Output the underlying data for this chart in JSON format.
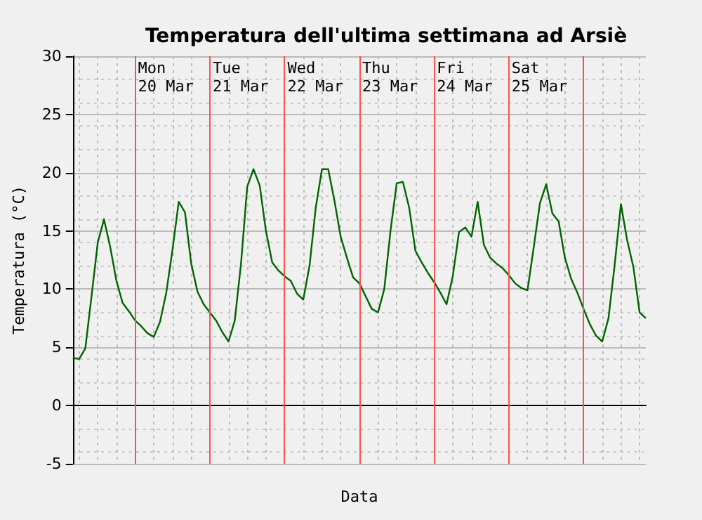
{
  "chart_data": {
    "type": "line",
    "title": "Temperatura dell'ultima settimana ad Arsiè",
    "xlabel": "Data",
    "ylabel": "Temperatura (°C)",
    "categories": [
      null,
      null,
      null,
      null,
      null,
      null,
      null,
      null,
      null,
      null,
      null,
      null,
      null,
      null,
      null,
      null,
      null,
      null,
      null,
      null,
      null,
      null,
      null,
      null,
      null,
      null,
      null,
      null,
      null,
      null,
      null,
      null,
      null,
      null,
      null,
      null,
      null,
      null,
      null,
      null,
      null,
      null,
      null,
      null,
      null,
      null,
      null,
      null,
      null,
      null,
      null,
      null,
      null,
      null,
      null,
      null,
      null,
      null,
      null,
      null,
      null,
      null,
      null,
      null,
      null,
      null,
      null,
      null,
      null,
      null,
      null,
      null,
      null,
      null,
      null,
      null,
      null,
      null,
      null,
      null,
      null,
      null,
      null,
      null,
      null,
      null,
      null,
      null,
      null,
      null,
      null,
      null,
      null
    ],
    "series": [
      {
        "color": "#006400",
        "values": [
          4.1,
          4.0,
          4.9,
          9.4,
          14.0,
          16.0,
          13.6,
          10.7,
          8.8,
          8.1,
          7.3,
          6.8,
          6.2,
          5.9,
          7.2,
          9.7,
          13.4,
          17.5,
          16.6,
          12.2,
          9.8,
          8.7,
          8.0,
          7.3,
          6.3,
          5.5,
          7.3,
          12.2,
          18.8,
          20.3,
          18.9,
          15.0,
          12.3,
          11.6,
          11.1,
          10.7,
          9.6,
          9.1,
          12.0,
          17.0,
          20.3,
          20.3,
          17.6,
          14.5,
          12.7,
          11.0,
          10.5,
          9.4,
          8.3,
          8.0,
          10.0,
          15.0,
          19.1,
          19.2,
          17.0,
          13.3,
          12.3,
          11.4,
          10.6,
          9.7,
          8.7,
          11.1,
          14.9,
          15.3,
          14.5,
          17.5,
          13.8,
          12.7,
          12.2,
          11.8,
          11.2,
          10.5,
          10.1,
          9.9,
          13.6,
          17.4,
          19.0,
          16.5,
          15.8,
          12.7,
          10.9,
          9.7,
          8.3,
          7.0,
          6.0,
          5.5,
          7.5,
          12.1,
          17.3,
          14.2,
          11.9,
          8.0,
          7.5
        ]
      }
    ],
    "ylim": [
      -5,
      30
    ],
    "yticks": [
      -5,
      0,
      5,
      10,
      15,
      20,
      25,
      30
    ],
    "annotations": [
      "Mon\n20 Mar",
      "Tue\n21 Mar",
      "Wed\n22 Mar",
      "Thu\n23 Mar",
      "Fri\n24 Mar",
      "Sat\n25 Mar"
    ],
    "grid": true,
    "tick_labels": "y",
    "line_style": "solid"
  }
}
